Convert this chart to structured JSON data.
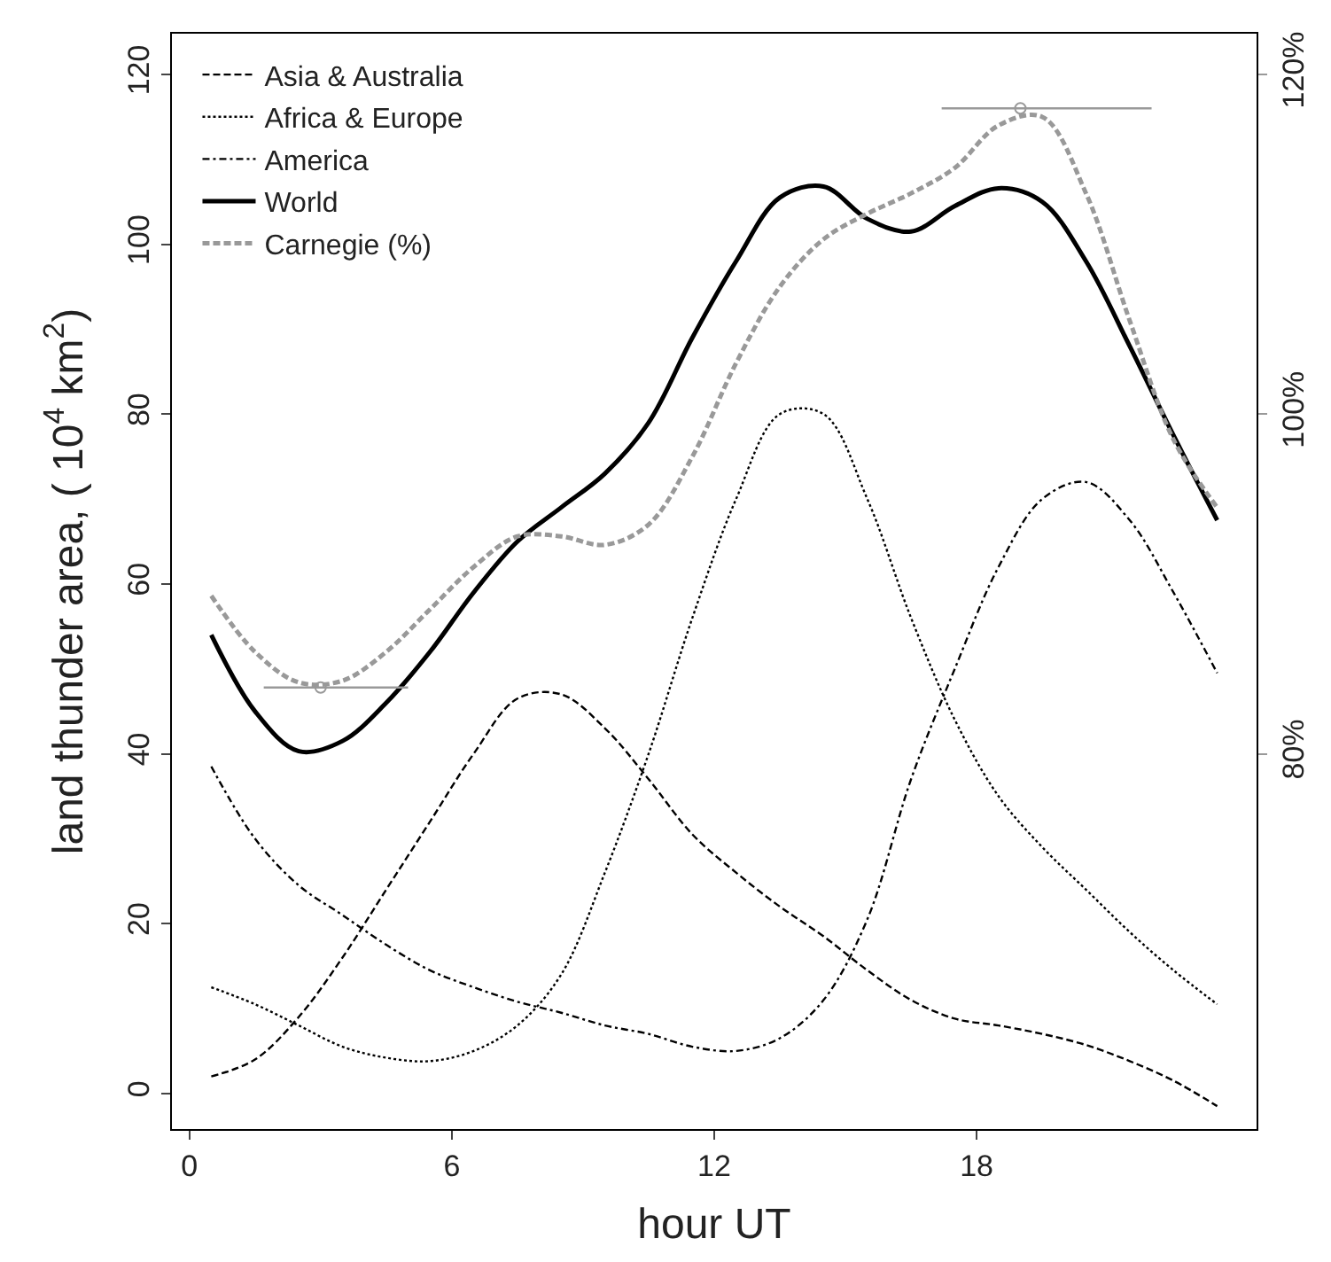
{
  "chart_data": {
    "type": "line",
    "xlabel": "hour UT",
    "ylabel": "land thunder area, ( 10$^{4}$ km$^{2}$)",
    "x": [
      0.5,
      1.5,
      2.5,
      3.5,
      4.5,
      5.5,
      6.5,
      7.5,
      8.5,
      9.5,
      10.5,
      11.5,
      12.5,
      13.5,
      14.5,
      15.5,
      16.5,
      17.5,
      18.5,
      19.5,
      20.5,
      21.5,
      22.5,
      23.5
    ],
    "series": [
      {
        "name": "Asia & Australia",
        "color": "#000000",
        "line_style": "dashed",
        "values": [
          2,
          4,
          9,
          16,
          24,
          32,
          40,
          46.5,
          47,
          43,
          37,
          30.5,
          26,
          22,
          18.5,
          14.5,
          11,
          8.8,
          8,
          7,
          5.7,
          3.8,
          1.5,
          -1.5
        ]
      },
      {
        "name": "Africa & Europe",
        "color": "#000000",
        "line_style": "dotted",
        "values": [
          12.5,
          10.5,
          8,
          5.5,
          4.2,
          3.8,
          5,
          8,
          14,
          26,
          40,
          56,
          70,
          80,
          80,
          70,
          56,
          44,
          35,
          29,
          24,
          19,
          14.5,
          10.5
        ]
      },
      {
        "name": "America",
        "color": "#000000",
        "line_style": "dashdot",
        "values": [
          38.5,
          30,
          24.5,
          21,
          17.5,
          14.5,
          12.5,
          10.8,
          9.5,
          8,
          7,
          5.5,
          5,
          6.5,
          11,
          20.5,
          37,
          50,
          62,
          70,
          72,
          67.5,
          59,
          49.5
        ]
      },
      {
        "name": "World",
        "color": "#000000",
        "line_style": "solid",
        "values": [
          54,
          45,
          40.3,
          41.5,
          46,
          52,
          59,
          65,
          69,
          73,
          79,
          89,
          98,
          105.5,
          106.8,
          103,
          101.5,
          104.5,
          106.6,
          105,
          98,
          88,
          77.5,
          67.5
        ]
      },
      {
        "name": "Carnegie (%)",
        "color": "#999999",
        "line_style": "dashed",
        "axis": "y2",
        "values": [
          89.3,
          86,
          84.2,
          84.3,
          86,
          88.5,
          91,
          92.8,
          92.8,
          92.3,
          93.5,
          97.5,
          103,
          107.5,
          110.3,
          111.8,
          113,
          114.5,
          117,
          117.5,
          113,
          105.5,
          98.5,
          94.5
        ]
      },
      {
        "type": "scatter",
        "color": "#999999",
        "axis": "y2",
        "marker": "circle",
        "x": [
          3,
          19
        ],
        "values": [
          83.9,
          118
        ],
        "xerrors": [
          [
            1.7,
            5
          ],
          [
            17.2,
            22
          ]
        ]
      }
    ],
    "xlim": [
      -0.4,
      24.4
    ],
    "xticks": [
      0,
      6,
      12,
      18
    ],
    "ylim": [
      -4.2,
      124.8
    ],
    "yticks": [
      0,
      20,
      40,
      60,
      80,
      100,
      120
    ],
    "y2lim": [
      57.9,
      122.4
    ],
    "y2ticks": [
      {
        "value": 80,
        "label": "80%"
      },
      {
        "value": 100,
        "label": "100%"
      },
      {
        "value": 120,
        "label": "120%"
      }
    ],
    "grid": false,
    "legend": "top left",
    "marker": "none"
  }
}
